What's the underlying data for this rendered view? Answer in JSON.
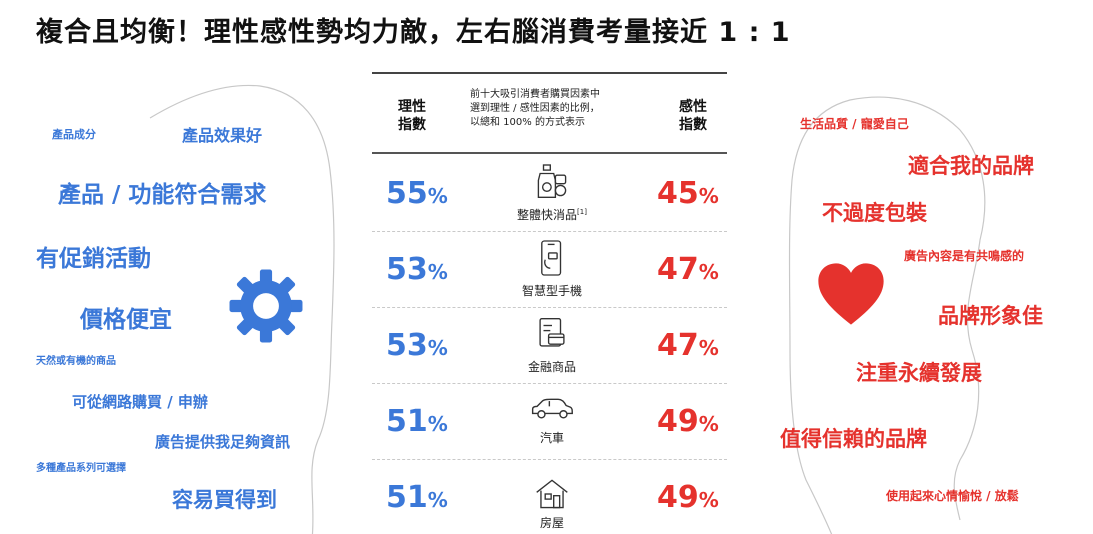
{
  "title": "複合且均衡！理性感性勢均力敵，左右腦消費考量接近 1 : 1",
  "table": {
    "header_left": [
      "理性",
      "指數"
    ],
    "header_mid": [
      "前十大吸引消費者購買因素中",
      "選到理性 / 感性因素的比例，",
      "以總和 100% 的方式表示"
    ],
    "header_right": [
      "感性",
      "指數"
    ],
    "rows": [
      {
        "rational": "55",
        "emotional": "45",
        "category": "整體快消品",
        "footnote": "[1]",
        "icon": "fmcg-products-icon"
      },
      {
        "rational": "53",
        "emotional": "47",
        "category": "智慧型手機",
        "footnote": "",
        "icon": "smartphone-icon"
      },
      {
        "rational": "53",
        "emotional": "47",
        "category": "金融商品",
        "footnote": "",
        "icon": "finance-card-icon"
      },
      {
        "rational": "51",
        "emotional": "49",
        "category": "汽車",
        "footnote": "",
        "icon": "car-icon"
      },
      {
        "rational": "51",
        "emotional": "49",
        "category": "房屋",
        "footnote": "",
        "icon": "house-icon"
      }
    ],
    "percent_sign": "%"
  },
  "rational_words": [
    "產品成分",
    "產品效果好",
    "產品 / 功能符合需求",
    "有促銷活動",
    "價格便宜",
    "天然或有機的商品",
    "可從網路購買 / 申辦",
    "廣告提供我足夠資訊",
    "多種產品系列可選擇",
    "容易買得到"
  ],
  "emotional_words": [
    "生活品質 / 寵愛自己",
    "適合我的品牌",
    "不過度包裝",
    "廣告內容是有共鳴感的",
    "品牌形象佳",
    "注重永續發展",
    "值得信賴的品牌",
    "使用起來心情愉悅 / 放鬆"
  ],
  "icons": {
    "left": "gear-icon",
    "right": "heart-icon"
  },
  "colors": {
    "rational": "#3b78d8",
    "emotional": "#e5322d"
  }
}
